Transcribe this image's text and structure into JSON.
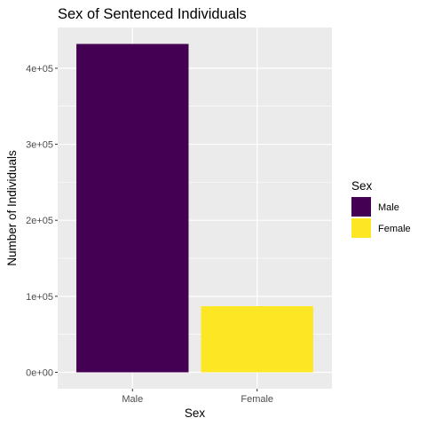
{
  "chart_data": {
    "type": "bar",
    "title": "Sex of Sentenced Individuals",
    "xlabel": "Sex",
    "ylabel": "Number of Individuals",
    "categories": [
      "Male",
      "Female"
    ],
    "values": [
      432000,
      87000
    ],
    "ylim": [
      -21600,
      453600
    ],
    "yticks": [
      0,
      100000,
      200000,
      300000,
      400000
    ],
    "ytick_labels": [
      "0e+00",
      "1e+05",
      "2e+05",
      "3e+05",
      "4e+05"
    ],
    "colors": [
      "#440154",
      "#FDE725"
    ],
    "panel_background": "#EBEBEB",
    "grid": true,
    "legend": {
      "title": "Sex",
      "position": "right",
      "entries": [
        {
          "label": "Male",
          "color": "#440154"
        },
        {
          "label": "Female",
          "color": "#FDE725"
        }
      ]
    }
  }
}
